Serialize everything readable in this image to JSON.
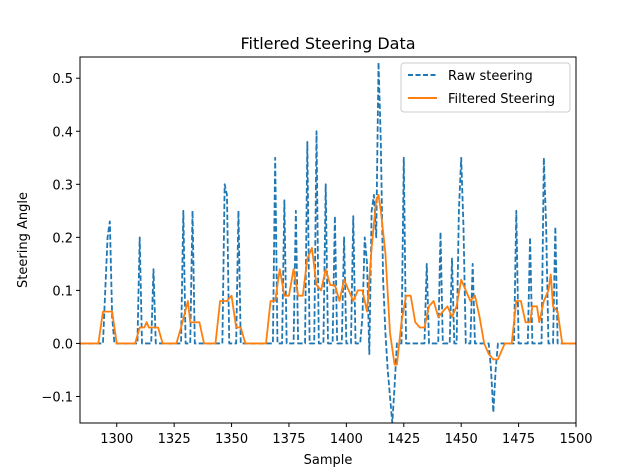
{
  "chart_data": {
    "type": "line",
    "title": "Fitlered Steering Data",
    "xlabel": "Sample",
    "ylabel": "Steering Angle",
    "xlim": [
      1284,
      1500
    ],
    "ylim": [
      -0.15,
      0.54
    ],
    "x_ticks": [
      1300,
      1325,
      1350,
      1375,
      1400,
      1425,
      1450,
      1475,
      1500
    ],
    "y_ticks": [
      -0.1,
      0.0,
      0.1,
      0.2,
      0.3,
      0.4,
      0.5
    ],
    "y_tick_labels": [
      "−0.1",
      "0.0",
      "0.1",
      "0.2",
      "0.3",
      "0.4",
      "0.5"
    ],
    "grid": false,
    "legend": "top-right",
    "colors": {
      "raw": "#1f77b4",
      "filtered": "#ff7f0e"
    },
    "series": [
      {
        "name": "Raw steering",
        "style": "dashed",
        "points": [
          [
            1284,
            0
          ],
          [
            1294,
            0
          ],
          [
            1296,
            0.2
          ],
          [
            1297,
            0.23
          ],
          [
            1298,
            0.05
          ],
          [
            1299,
            0
          ],
          [
            1309,
            0
          ],
          [
            1310,
            0.2
          ],
          [
            1311,
            0
          ],
          [
            1315,
            0
          ],
          [
            1316,
            0.14
          ],
          [
            1317,
            0
          ],
          [
            1328,
            0
          ],
          [
            1329,
            0.25
          ],
          [
            1330,
            0
          ],
          [
            1332,
            0
          ],
          [
            1333,
            0.25
          ],
          [
            1334,
            0
          ],
          [
            1346,
            0
          ],
          [
            1347,
            0.3
          ],
          [
            1348,
            0.28
          ],
          [
            1349,
            0
          ],
          [
            1352,
            0
          ],
          [
            1353,
            0.25
          ],
          [
            1354,
            0
          ],
          [
            1368,
            0
          ],
          [
            1369,
            0.35
          ],
          [
            1370,
            0
          ],
          [
            1372,
            0
          ],
          [
            1373,
            0.27
          ],
          [
            1374,
            0
          ],
          [
            1377,
            0
          ],
          [
            1378,
            0.25
          ],
          [
            1379,
            0
          ],
          [
            1382,
            0
          ],
          [
            1383,
            0.38
          ],
          [
            1384,
            0
          ],
          [
            1386,
            0
          ],
          [
            1387,
            0.4
          ],
          [
            1388,
            0
          ],
          [
            1390,
            0
          ],
          [
            1391,
            0.3
          ],
          [
            1392,
            0
          ],
          [
            1394,
            0
          ],
          [
            1395,
            0.24
          ],
          [
            1396,
            0
          ],
          [
            1398,
            0
          ],
          [
            1399,
            0.2
          ],
          [
            1400,
            0
          ],
          [
            1402,
            0
          ],
          [
            1403,
            0.24
          ],
          [
            1404,
            0
          ],
          [
            1406,
            0
          ],
          [
            1407,
            0.05
          ],
          [
            1408,
            0.2
          ],
          [
            1409,
            0.15
          ],
          [
            1410,
            -0.02
          ],
          [
            1411,
            0.25
          ],
          [
            1412,
            0.28
          ],
          [
            1413,
            0.2
          ],
          [
            1414,
            0.53
          ],
          [
            1415,
            0.38
          ],
          [
            1416,
            0.12
          ],
          [
            1417,
            0.02
          ],
          [
            1418,
            -0.05
          ],
          [
            1419,
            -0.1
          ],
          [
            1420,
            -0.15
          ],
          [
            1421,
            -0.08
          ],
          [
            1422,
            0
          ],
          [
            1424,
            0
          ],
          [
            1425,
            0.35
          ],
          [
            1426,
            0
          ],
          [
            1434,
            0
          ],
          [
            1435,
            0.15
          ],
          [
            1436,
            0
          ],
          [
            1440,
            0
          ],
          [
            1441,
            0.21
          ],
          [
            1442,
            0
          ],
          [
            1445,
            0
          ],
          [
            1446,
            0.16
          ],
          [
            1447,
            0
          ],
          [
            1448,
            0
          ],
          [
            1449,
            0.25
          ],
          [
            1450,
            0.35
          ],
          [
            1451,
            0.22
          ],
          [
            1452,
            0
          ],
          [
            1454,
            0
          ],
          [
            1455,
            0.15
          ],
          [
            1456,
            0
          ],
          [
            1462,
            0
          ],
          [
            1463,
            -0.05
          ],
          [
            1464,
            -0.13
          ],
          [
            1465,
            -0.05
          ],
          [
            1466,
            0
          ],
          [
            1473,
            0
          ],
          [
            1474,
            0.25
          ],
          [
            1475,
            0
          ],
          [
            1479,
            0
          ],
          [
            1480,
            0.2
          ],
          [
            1481,
            0
          ],
          [
            1485,
            0
          ],
          [
            1486,
            0.35
          ],
          [
            1487,
            0.22
          ],
          [
            1488,
            0
          ],
          [
            1490,
            0
          ],
          [
            1491,
            0.22
          ],
          [
            1492,
            0
          ],
          [
            1500,
            0
          ]
        ]
      },
      {
        "name": "Filtered Steering",
        "style": "solid",
        "points": [
          [
            1284,
            0
          ],
          [
            1292,
            0
          ],
          [
            1294,
            0.06
          ],
          [
            1298,
            0.06
          ],
          [
            1300,
            0
          ],
          [
            1308,
            0
          ],
          [
            1310,
            0.03
          ],
          [
            1312,
            0.03
          ],
          [
            1313,
            0.04
          ],
          [
            1314,
            0.03
          ],
          [
            1318,
            0.03
          ],
          [
            1320,
            0
          ],
          [
            1326,
            0
          ],
          [
            1328,
            0.03
          ],
          [
            1331,
            0.08
          ],
          [
            1332,
            0.04
          ],
          [
            1336,
            0.04
          ],
          [
            1338,
            0
          ],
          [
            1343,
            0
          ],
          [
            1345,
            0.08
          ],
          [
            1348,
            0.08
          ],
          [
            1350,
            0.09
          ],
          [
            1352,
            0.03
          ],
          [
            1354,
            0.03
          ],
          [
            1356,
            0
          ],
          [
            1365,
            0
          ],
          [
            1367,
            0.08
          ],
          [
            1369,
            0.08
          ],
          [
            1371,
            0.14
          ],
          [
            1373,
            0.09
          ],
          [
            1375,
            0.09
          ],
          [
            1377,
            0.14
          ],
          [
            1379,
            0.09
          ],
          [
            1381,
            0.09
          ],
          [
            1383,
            0.16
          ],
          [
            1385,
            0.18
          ],
          [
            1387,
            0.11
          ],
          [
            1389,
            0.1
          ],
          [
            1391,
            0.14
          ],
          [
            1393,
            0.11
          ],
          [
            1395,
            0.11
          ],
          [
            1397,
            0.08
          ],
          [
            1399,
            0.12
          ],
          [
            1401,
            0.1
          ],
          [
            1403,
            0.08
          ],
          [
            1405,
            0.1
          ],
          [
            1407,
            0.1
          ],
          [
            1409,
            0.06
          ],
          [
            1411,
            0.18
          ],
          [
            1413,
            0.27
          ],
          [
            1414,
            0.28
          ],
          [
            1415,
            0.25
          ],
          [
            1417,
            0.17
          ],
          [
            1419,
            0.02
          ],
          [
            1421,
            -0.04
          ],
          [
            1422,
            -0.04
          ],
          [
            1424,
            0.04
          ],
          [
            1426,
            0.09
          ],
          [
            1428,
            0.09
          ],
          [
            1430,
            0.04
          ],
          [
            1432,
            0.03
          ],
          [
            1434,
            0.03
          ],
          [
            1436,
            0.07
          ],
          [
            1438,
            0.08
          ],
          [
            1440,
            0.05
          ],
          [
            1442,
            0.06
          ],
          [
            1444,
            0.07
          ],
          [
            1446,
            0.05
          ],
          [
            1448,
            0.07
          ],
          [
            1450,
            0.12
          ],
          [
            1452,
            0.1
          ],
          [
            1454,
            0.08
          ],
          [
            1456,
            0.09
          ],
          [
            1458,
            0.05
          ],
          [
            1460,
            0
          ],
          [
            1462,
            -0.02
          ],
          [
            1464,
            -0.03
          ],
          [
            1466,
            -0.03
          ],
          [
            1467,
            -0.02
          ],
          [
            1469,
            0
          ],
          [
            1472,
            0
          ],
          [
            1474,
            0.08
          ],
          [
            1476,
            0.08
          ],
          [
            1478,
            0.04
          ],
          [
            1480,
            0.04
          ],
          [
            1481,
            0.07
          ],
          [
            1483,
            0.07
          ],
          [
            1484,
            0.04
          ],
          [
            1486,
            0.08
          ],
          [
            1488,
            0.1
          ],
          [
            1489,
            0.13
          ],
          [
            1490,
            0.07
          ],
          [
            1492,
            0.06
          ],
          [
            1494,
            0
          ],
          [
            1500,
            0
          ]
        ]
      }
    ]
  }
}
